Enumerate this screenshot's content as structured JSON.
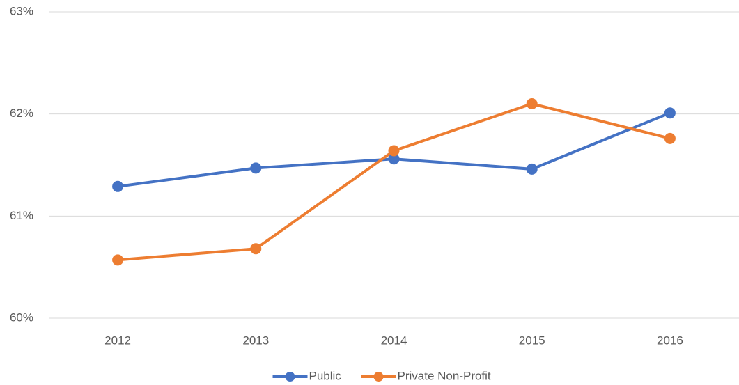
{
  "chart_data": {
    "type": "line",
    "categories": [
      "2012",
      "2013",
      "2014",
      "2015",
      "2016"
    ],
    "series": [
      {
        "name": "Public",
        "color": "#4472c4",
        "values": [
          61.29,
          61.47,
          61.56,
          61.46,
          62.01
        ]
      },
      {
        "name": "Private Non-Profit",
        "color": "#ed7d31",
        "values": [
          60.57,
          60.68,
          61.64,
          62.1,
          61.76
        ]
      }
    ],
    "ylim": [
      60,
      63
    ],
    "yticks": [
      {
        "value": 60,
        "label": "60%"
      },
      {
        "value": 61,
        "label": "61%"
      },
      {
        "value": 62,
        "label": "62%"
      },
      {
        "value": 63,
        "label": "63%"
      }
    ],
    "grid": true,
    "legend": "bottom"
  }
}
